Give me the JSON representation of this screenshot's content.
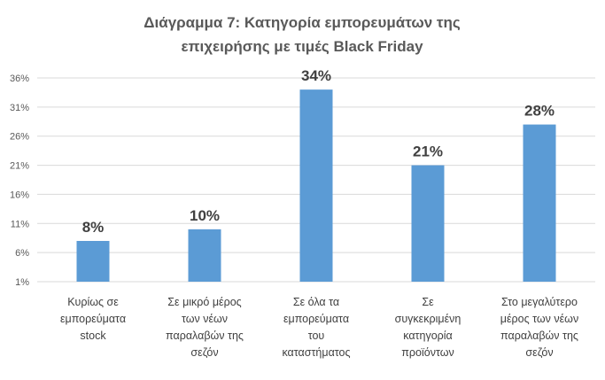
{
  "chart_data": {
    "type": "bar",
    "title_lines": [
      "Διάγραμμα 7: Κατηγορία εμπορευμάτων  της",
      "επιχειρήσης με τιμές Black Friday"
    ],
    "categories": [
      [
        "Κυρίως σε",
        "εμπορεύματα",
        "stock"
      ],
      [
        "Σε μικρό μέρος",
        "των νέων",
        "παραλαβών της",
        "σεζόν"
      ],
      [
        "Σε όλα τα",
        "εμπορεύματα",
        "του",
        "καταστήματος"
      ],
      [
        "Σε",
        "συγκεκριμένη",
        "κατηγορία",
        "προϊόντων"
      ],
      [
        "Στο μεγαλύτερο",
        "μέρος των νέων",
        "παραλαβών της",
        "σεζόν"
      ]
    ],
    "values": [
      8,
      10,
      34,
      21,
      28
    ],
    "data_labels": [
      "8%",
      "10%",
      "34%",
      "21%",
      "28%"
    ],
    "y_ticks": [
      "1%",
      "6%",
      "11%",
      "16%",
      "21%",
      "26%",
      "31%",
      "36%"
    ],
    "ylim": [
      1,
      36
    ],
    "grid": true,
    "legend": "none",
    "bar_color": "#5b9bd5",
    "grid_color": "#d9d9d9"
  }
}
